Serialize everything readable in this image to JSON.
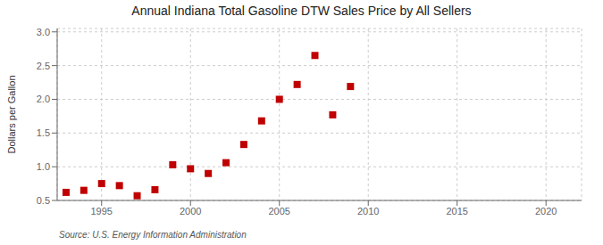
{
  "chart_data": {
    "type": "scatter",
    "title": "Annual Indiana Total Gasoline DTW Sales Price by All Sellers",
    "ylabel": "Dollars per Gallon",
    "source": "Source: U.S. Energy Information Administration",
    "x": [
      1993,
      1994,
      1995,
      1996,
      1997,
      1998,
      1999,
      2000,
      2001,
      2002,
      2003,
      2004,
      2005,
      2006,
      2007,
      2008,
      2009
    ],
    "values": [
      0.62,
      0.65,
      0.75,
      0.72,
      0.57,
      0.66,
      1.03,
      0.97,
      0.9,
      1.06,
      1.33,
      1.68,
      2.0,
      2.22,
      2.65,
      1.77,
      2.19
    ],
    "color": "#c00000",
    "marker": "square",
    "xlim": [
      1992.5,
      2022
    ],
    "ylim": [
      0.5,
      3.05
    ],
    "xticks": [
      1995,
      2000,
      2005,
      2010,
      2015,
      2020
    ],
    "yticks": [
      0.5,
      {
        "value": 1,
        "label": "1.0"
      },
      1.5,
      {
        "value": 2,
        "label": "2.0"
      },
      2.5,
      {
        "value": 3,
        "label": "3.0"
      }
    ],
    "grid": true
  }
}
